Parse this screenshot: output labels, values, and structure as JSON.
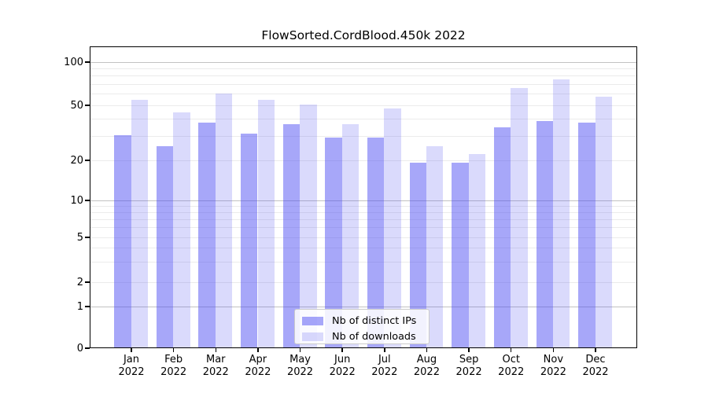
{
  "chart_data": {
    "type": "bar",
    "title": "FlowSorted.CordBlood.450k 2022",
    "categories": [
      "Jan 2022",
      "Feb 2022",
      "Mar 2022",
      "Apr 2022",
      "May 2022",
      "Jun 2022",
      "Jul 2022",
      "Aug 2022",
      "Sep 2022",
      "Oct 2022",
      "Nov 2022",
      "Dec 2022"
    ],
    "series": [
      {
        "name": "Nb of distinct IPs",
        "color": "#a7a7f7",
        "values": [
          30,
          25,
          37,
          31,
          36,
          29,
          29,
          19,
          19,
          34,
          38,
          37
        ]
      },
      {
        "name": "Nb of downloads",
        "color": "#d9d9f6",
        "values": [
          54,
          44,
          60,
          54,
          50,
          36,
          47,
          25,
          22,
          65,
          75,
          57
        ]
      }
    ],
    "xlabel": "",
    "ylabel": "",
    "yscale": "symlog",
    "yticks": [
      0,
      1,
      2,
      5,
      10,
      20,
      50,
      100
    ],
    "ylim": [
      0,
      128
    ],
    "grid": "horizontal, major gridlines at 1/10/100, minor gridlines between",
    "legend_position": "inside lower-center"
  }
}
